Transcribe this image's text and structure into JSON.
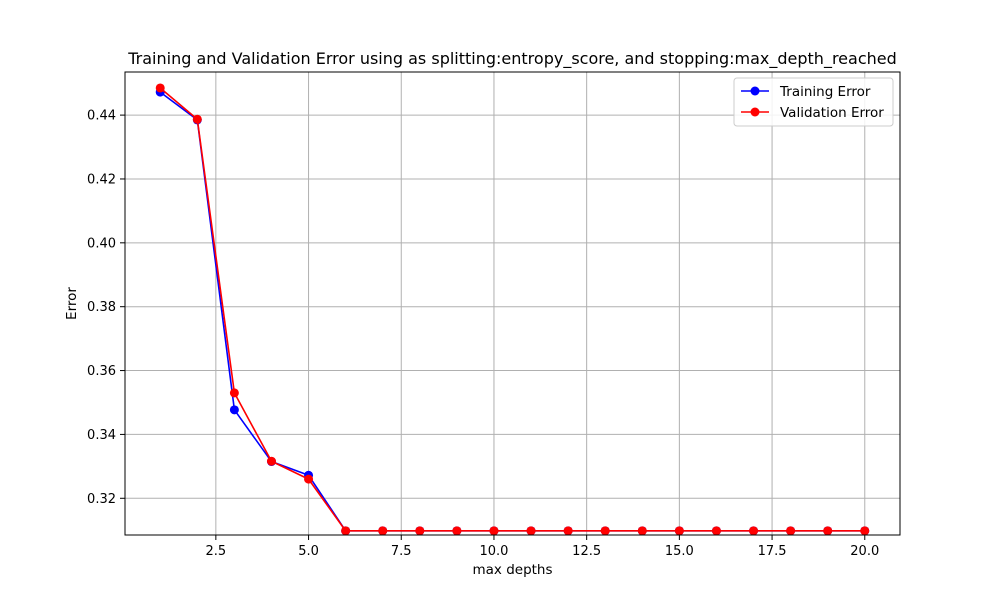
{
  "chart_data": {
    "type": "line",
    "title": "Training and Validation Error using as splitting:entropy_score, and stopping:max_depth_reached",
    "xlabel": "max depths",
    "ylabel": "Error",
    "xlim": [
      0.05,
      20.95
    ],
    "ylim": [
      0.3085,
      0.4535
    ],
    "xticks": [
      2.5,
      5.0,
      7.5,
      10.0,
      12.5,
      15.0,
      17.5,
      20.0
    ],
    "xtick_labels": [
      "2.5",
      "5.0",
      "7.5",
      "10.0",
      "12.5",
      "15.0",
      "17.5",
      "20.0"
    ],
    "yticks": [
      0.32,
      0.34,
      0.36,
      0.38,
      0.4,
      0.42,
      0.44
    ],
    "ytick_labels": [
      "0.32",
      "0.34",
      "0.36",
      "0.38",
      "0.40",
      "0.42",
      "0.44"
    ],
    "grid": true,
    "legend_position": "upper right",
    "x": [
      1,
      2,
      3,
      4,
      5,
      6,
      7,
      8,
      9,
      10,
      11,
      12,
      13,
      14,
      15,
      16,
      17,
      18,
      19,
      20
    ],
    "series": [
      {
        "name": "Training Error",
        "color": "#0000ff",
        "marker": "circle",
        "values": [
          0.4472,
          0.4385,
          0.3477,
          0.3315,
          0.3272,
          0.3098,
          0.3098,
          0.3098,
          0.3098,
          0.3098,
          0.3098,
          0.3098,
          0.3098,
          0.3098,
          0.3098,
          0.3098,
          0.3098,
          0.3098,
          0.3098,
          0.3098
        ]
      },
      {
        "name": "Validation Error",
        "color": "#ff0000",
        "marker": "circle",
        "values": [
          0.4485,
          0.4387,
          0.353,
          0.3316,
          0.326,
          0.3098,
          0.3098,
          0.3098,
          0.3098,
          0.3098,
          0.3098,
          0.3098,
          0.3098,
          0.3098,
          0.3098,
          0.3098,
          0.3098,
          0.3098,
          0.3098,
          0.3098
        ]
      }
    ]
  }
}
